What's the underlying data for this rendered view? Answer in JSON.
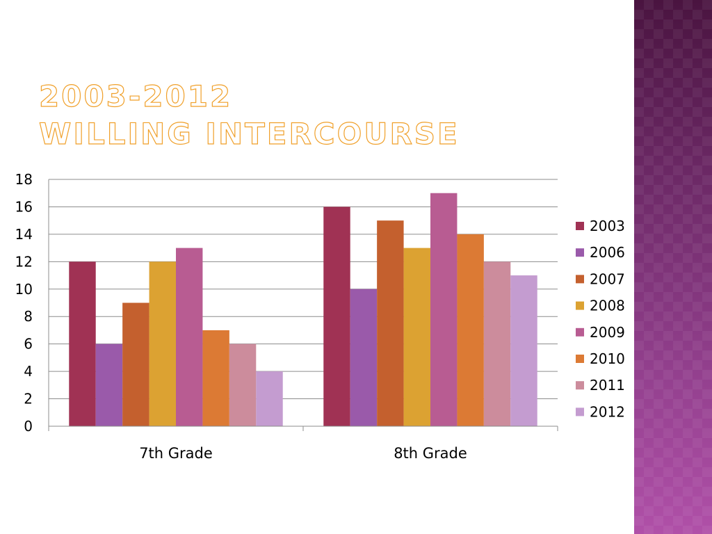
{
  "slide": {
    "title_line1": "2003-2012",
    "title_line2": "Willing Intercourse"
  },
  "chart_data": {
    "type": "bar",
    "categories": [
      "7th Grade",
      "8th Grade"
    ],
    "series": [
      {
        "name": "2003",
        "color": "#a03254",
        "values": [
          12,
          16
        ]
      },
      {
        "name": "2006",
        "color": "#9a5aaa",
        "values": [
          6,
          10
        ]
      },
      {
        "name": "2007",
        "color": "#c4602e",
        "values": [
          9,
          15
        ]
      },
      {
        "name": "2008",
        "color": "#dca232",
        "values": [
          12,
          13
        ]
      },
      {
        "name": "2009",
        "color": "#b85c92",
        "values": [
          13,
          17
        ]
      },
      {
        "name": "2010",
        "color": "#dc7a34",
        "values": [
          7,
          14
        ]
      },
      {
        "name": "2011",
        "color": "#cc8c9c",
        "values": [
          6,
          12
        ]
      },
      {
        "name": "2012",
        "color": "#c49cd0",
        "values": [
          4,
          11
        ]
      }
    ],
    "ylim": [
      0,
      18
    ],
    "ytick_step": 2,
    "yticks": [
      "0",
      "2",
      "4",
      "6",
      "8",
      "10",
      "12",
      "14",
      "16",
      "18"
    ],
    "grid": true,
    "legend_position": "right"
  }
}
